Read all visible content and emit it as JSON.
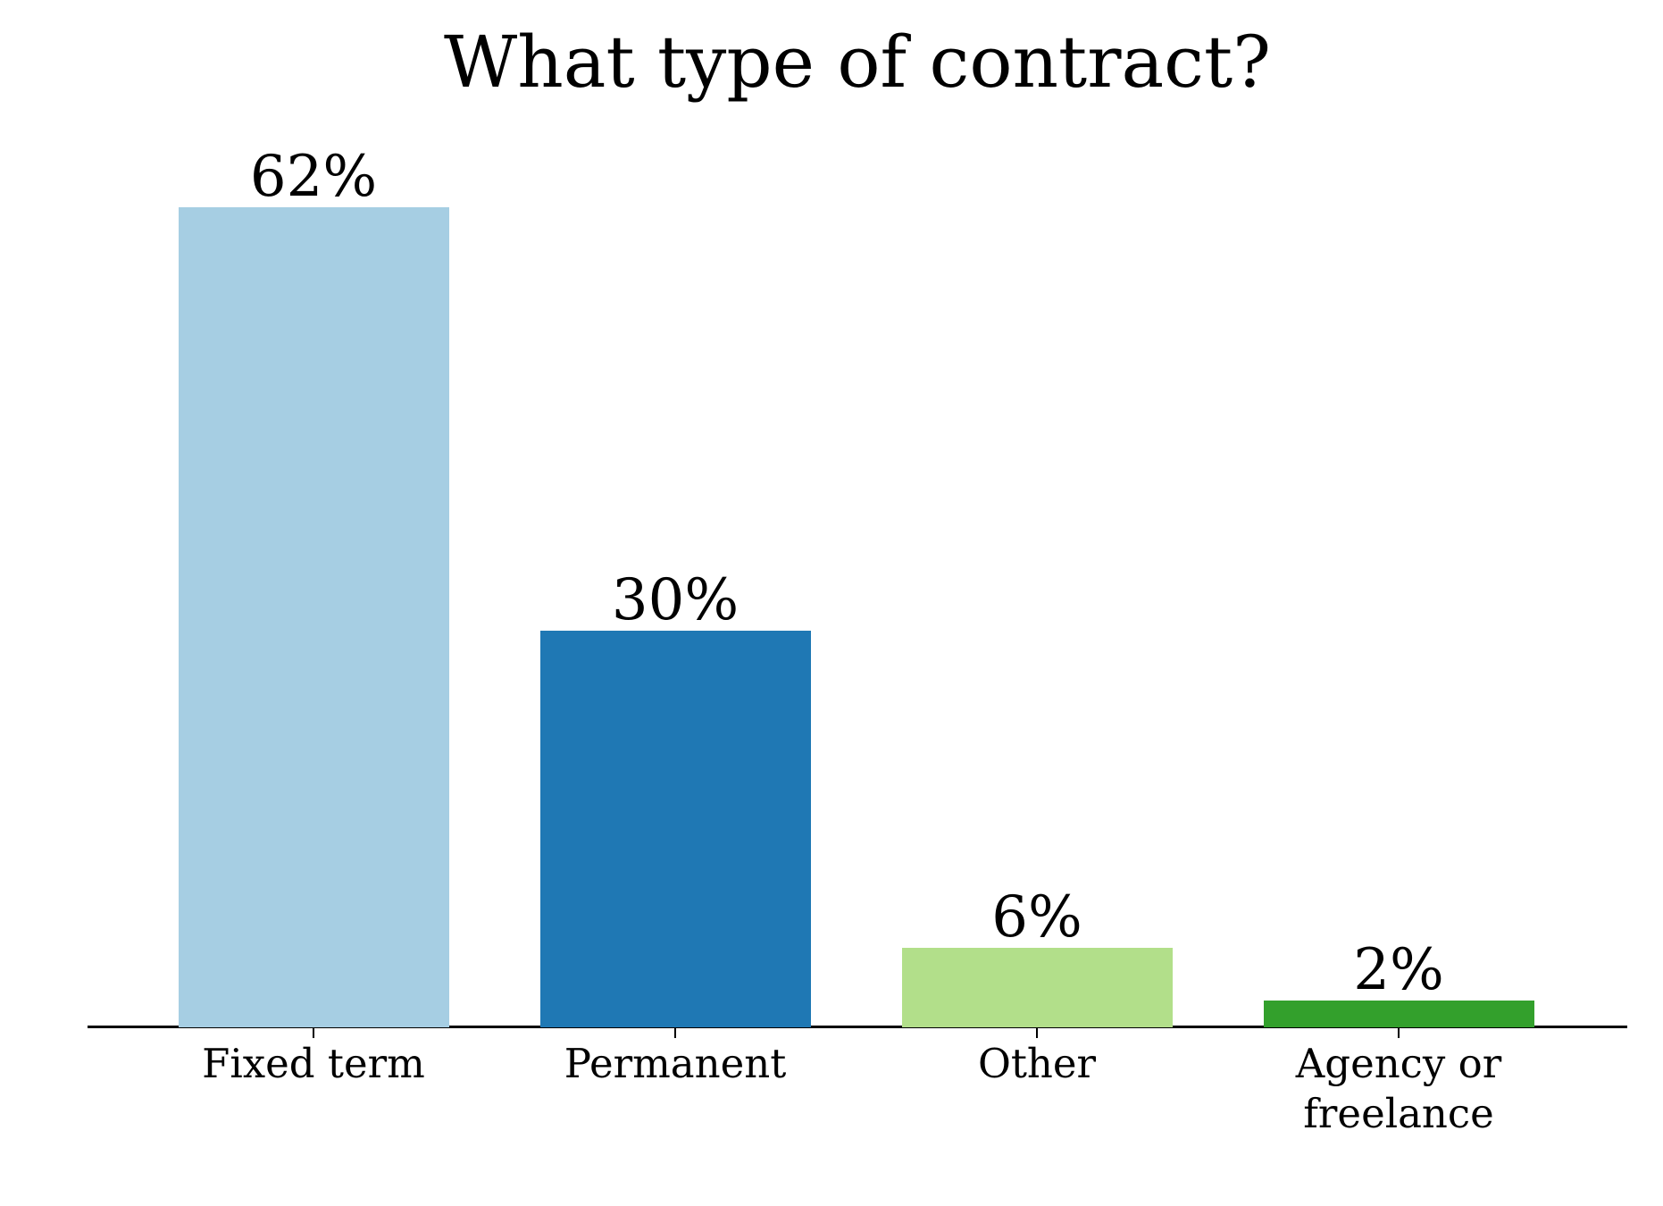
{
  "chart_data": {
    "type": "bar",
    "title": "What type of contract?",
    "categories": [
      "Fixed term",
      "Permanent",
      "Other",
      "Agency or freelance"
    ],
    "values": [
      62,
      30,
      6,
      2
    ],
    "value_labels": [
      "62%",
      "30%",
      "6%",
      "2%"
    ],
    "bar_colors": [
      "#a6cee3",
      "#1f78b4",
      "#b2df8a",
      "#33a02c"
    ],
    "xlabel": "",
    "ylabel": "",
    "ylim": [
      0,
      65
    ],
    "grid": false,
    "legend": "none",
    "axis_color": "#000000",
    "text_color": "#000000",
    "background": "#ffffff"
  }
}
